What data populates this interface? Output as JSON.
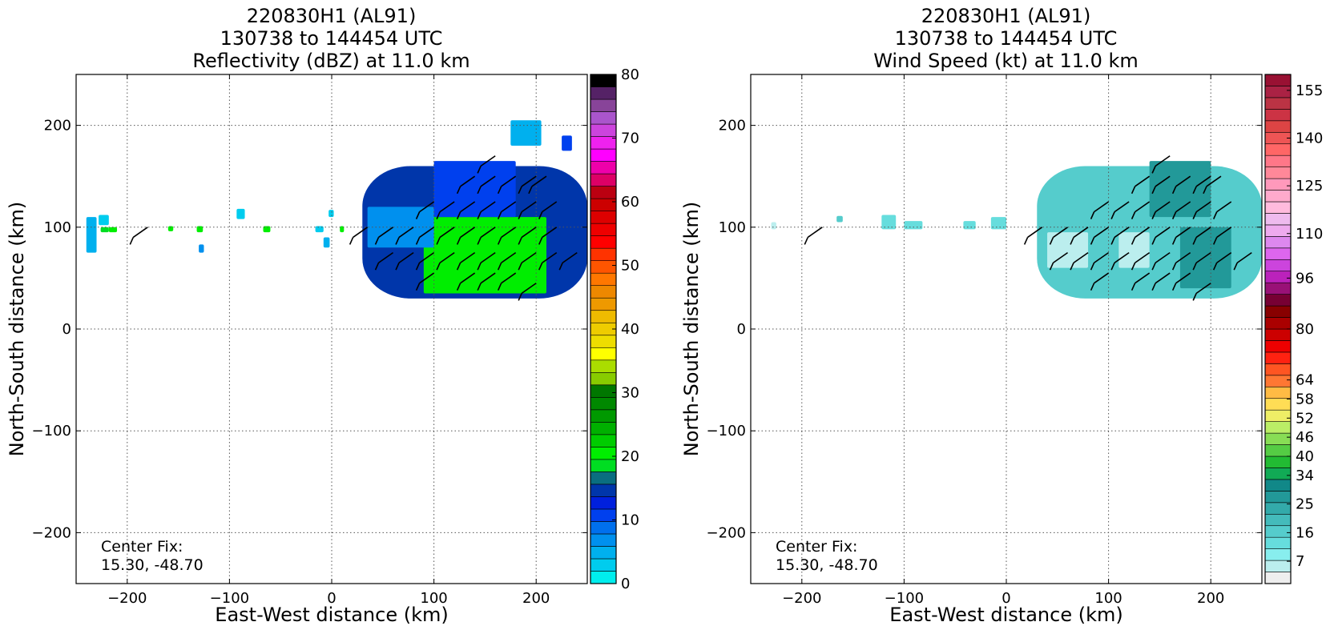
{
  "chart_data": [
    {
      "type": "heatmap",
      "title": [
        "220830H1 (AL91)",
        "130738 to 144454 UTC",
        "Reflectivity (dBZ) at 11.0 km"
      ],
      "xlabel": "East-West distance (km)",
      "ylabel": "North-South distance (km)",
      "xlim": [
        -250,
        250
      ],
      "ylim": [
        -250,
        250
      ],
      "xticks": [
        -200,
        -100,
        0,
        100,
        200
      ],
      "yticks": [
        -200,
        -100,
        0,
        100,
        200
      ],
      "xtick_labels": [
        "−200",
        "−100",
        "0",
        "100",
        "200"
      ],
      "ytick_labels": [
        "−200",
        "−100",
        "0",
        "100",
        "200"
      ],
      "grid": true,
      "annotation": [
        "Center Fix:",
        "15.30, -48.70"
      ],
      "colorbar": {
        "min": 0,
        "max": 80,
        "ticks": [
          0,
          10,
          20,
          30,
          40,
          50,
          60,
          70,
          80
        ],
        "tick_labels": [
          "0",
          "10",
          "20",
          "30",
          "40",
          "50",
          "60",
          "70",
          "80"
        ],
        "colors": [
          "#00eeee",
          "#00ccee",
          "#00b0ee",
          "#0090ee",
          "#0070ee",
          "#0040ee",
          "#0020dd",
          "#0036aa",
          "#0a6e80",
          "#00dd22",
          "#00ee00",
          "#00cc00",
          "#00b000",
          "#009900",
          "#008800",
          "#007700",
          "#88cc00",
          "#aadd00",
          "#ffff00",
          "#eedd00",
          "#eecc00",
          "#eebb00",
          "#ee9900",
          "#ee8800",
          "#ff7700",
          "#ff5500",
          "#ff3300",
          "#ff0000",
          "#ee0000",
          "#dd0000",
          "#cc0000",
          "#bb0011",
          "#dd0066",
          "#ee00aa",
          "#ff00ff",
          "#ee22ee",
          "#cc44dd",
          "#aa55cc",
          "#884499",
          "#552266",
          "#000000"
        ]
      },
      "precip_regions": [
        {
          "x": [
            30,
            250
          ],
          "y": [
            30,
            160
          ],
          "value": 14,
          "note": "main core envelope"
        },
        {
          "x": [
            90,
            210
          ],
          "y": [
            35,
            110
          ],
          "value": 21
        },
        {
          "x": [
            100,
            180
          ],
          "y": [
            110,
            165
          ],
          "value": 11
        },
        {
          "x": [
            35,
            100
          ],
          "y": [
            80,
            120
          ],
          "value": 6
        },
        {
          "x": [
            175,
            205
          ],
          "y": [
            180,
            205
          ],
          "value": 4
        },
        {
          "x": [
            225,
            235
          ],
          "y": [
            175,
            190
          ],
          "value": 11
        },
        {
          "x": [
            -240,
            -230
          ],
          "y": [
            75,
            110
          ],
          "value": 4
        },
        {
          "x": [
            -228,
            -218
          ],
          "y": [
            102,
            112
          ],
          "value": 3
        },
        {
          "x": [
            -226,
            -218
          ],
          "y": [
            95,
            100
          ],
          "value": 19
        },
        {
          "x": [
            -218,
            -210
          ],
          "y": [
            95,
            100
          ],
          "value": 20
        },
        {
          "x": [
            -160,
            -155
          ],
          "y": [
            96,
            101
          ],
          "value": 20
        },
        {
          "x": [
            -132,
            -126
          ],
          "y": [
            95,
            101
          ],
          "value": 20
        },
        {
          "x": [
            -130,
            -125
          ],
          "y": [
            75,
            83
          ],
          "value": 7
        },
        {
          "x": [
            -93,
            -85
          ],
          "y": [
            108,
            118
          ],
          "value": 3
        },
        {
          "x": [
            -67,
            -60
          ],
          "y": [
            95,
            101
          ],
          "value": 20
        },
        {
          "x": [
            -16,
            -8
          ],
          "y": [
            95,
            101
          ],
          "value": 3
        },
        {
          "x": [
            -8,
            -2
          ],
          "y": [
            80,
            90
          ],
          "value": 5
        },
        {
          "x": [
            -3,
            2
          ],
          "y": [
            110,
            117
          ],
          "value": 2
        },
        {
          "x": [
            8,
            12
          ],
          "y": [
            95,
            101
          ],
          "value": 20
        }
      ],
      "wind_barbs": [
        {
          "x": -180,
          "y": 100
        },
        {
          "x": 35,
          "y": 100
        },
        {
          "x": 60,
          "y": 100
        },
        {
          "x": 80,
          "y": 100
        },
        {
          "x": 100,
          "y": 100
        },
        {
          "x": 120,
          "y": 100
        },
        {
          "x": 140,
          "y": 100
        },
        {
          "x": 160,
          "y": 100
        },
        {
          "x": 180,
          "y": 100
        },
        {
          "x": 200,
          "y": 100
        },
        {
          "x": 220,
          "y": 100
        },
        {
          "x": 100,
          "y": 125
        },
        {
          "x": 120,
          "y": 125
        },
        {
          "x": 140,
          "y": 125
        },
        {
          "x": 160,
          "y": 125
        },
        {
          "x": 180,
          "y": 125
        },
        {
          "x": 200,
          "y": 125
        },
        {
          "x": 220,
          "y": 125
        },
        {
          "x": 140,
          "y": 150
        },
        {
          "x": 160,
          "y": 150
        },
        {
          "x": 180,
          "y": 150
        },
        {
          "x": 200,
          "y": 150
        },
        {
          "x": 160,
          "y": 170
        },
        {
          "x": 210,
          "y": 150
        },
        {
          "x": 60,
          "y": 75
        },
        {
          "x": 80,
          "y": 75
        },
        {
          "x": 100,
          "y": 75
        },
        {
          "x": 120,
          "y": 75
        },
        {
          "x": 140,
          "y": 75
        },
        {
          "x": 160,
          "y": 75
        },
        {
          "x": 180,
          "y": 75
        },
        {
          "x": 200,
          "y": 75
        },
        {
          "x": 220,
          "y": 75
        },
        {
          "x": 240,
          "y": 75
        },
        {
          "x": 100,
          "y": 55
        },
        {
          "x": 140,
          "y": 55
        },
        {
          "x": 160,
          "y": 55
        },
        {
          "x": 180,
          "y": 55
        },
        {
          "x": 200,
          "y": 45
        }
      ]
    },
    {
      "type": "heatmap",
      "title": [
        "220830H1 (AL91)",
        "130738 to 144454 UTC",
        "Wind Speed (kt) at 11.0 km"
      ],
      "xlabel": "East-West distance (km)",
      "ylabel": "North-South distance (km)",
      "xlim": [
        -250,
        250
      ],
      "ylim": [
        -250,
        250
      ],
      "xticks": [
        -200,
        -100,
        0,
        100,
        200
      ],
      "yticks": [
        -200,
        -100,
        0,
        100,
        200
      ],
      "xtick_labels": [
        "−200",
        "−100",
        "0",
        "100",
        "200"
      ],
      "ytick_labels": [
        "−200",
        "−100",
        "0",
        "100",
        "200"
      ],
      "grid": true,
      "annotation": [
        "Center Fix:",
        "15.30, -48.70"
      ],
      "colorbar": {
        "min": 0,
        "max": 160,
        "ticks": [
          7,
          16,
          25,
          34,
          40,
          46,
          52,
          58,
          64,
          80,
          96,
          110,
          125,
          140,
          155
        ],
        "tick_labels": [
          "7",
          "16",
          "25",
          "34",
          "40",
          "46",
          "52",
          "58",
          "64",
          "80",
          "96",
          "110",
          "125",
          "140",
          "155"
        ],
        "colors": [
          "#eeeeee",
          "#bbeeee",
          "#88eeee",
          "#66dddd",
          "#55cccc",
          "#44bbbb",
          "#33aaaa",
          "#229999",
          "#118888",
          "#11aa55",
          "#22bb33",
          "#55cc44",
          "#88dd55",
          "#bbee66",
          "#eeee66",
          "#ffdd55",
          "#ffbb44",
          "#ff7733",
          "#ff5522",
          "#ff2211",
          "#ee0000",
          "#cc0000",
          "#aa0000",
          "#880000",
          "#770033",
          "#991177",
          "#bb22bb",
          "#cc44dd",
          "#dd66ee",
          "#dd88ee",
          "#eeaaee",
          "#eebbee",
          "#ffbbdd",
          "#ffaacc",
          "#ff99bb",
          "#ff8899",
          "#ff7788",
          "#ff6666",
          "#ee5555",
          "#dd4444",
          "#cc3344",
          "#bb3344",
          "#aa2244",
          "#991133"
        ]
      },
      "wind_regions": [
        {
          "x": [
            30,
            250
          ],
          "y": [
            30,
            160
          ],
          "value": 18,
          "note": "main core envelope"
        },
        {
          "x": [
            40,
            80
          ],
          "y": [
            60,
            95
          ],
          "value": 5
        },
        {
          "x": [
            110,
            140
          ],
          "y": [
            60,
            95
          ],
          "value": 6
        },
        {
          "x": [
            140,
            200
          ],
          "y": [
            110,
            165
          ],
          "value": 28
        },
        {
          "x": [
            170,
            220
          ],
          "y": [
            40,
            100
          ],
          "value": 27
        },
        {
          "x": [
            -230,
            -225
          ],
          "y": [
            98,
            105
          ],
          "value": 6
        },
        {
          "x": [
            -166,
            -160
          ],
          "y": [
            105,
            111
          ],
          "value": 16
        },
        {
          "x": [
            -122,
            -108
          ],
          "y": [
            98,
            112
          ],
          "value": 14
        },
        {
          "x": [
            -100,
            -82
          ],
          "y": [
            98,
            106
          ],
          "value": 12
        },
        {
          "x": [
            -42,
            -30
          ],
          "y": [
            98,
            106
          ],
          "value": 12
        },
        {
          "x": [
            -15,
            0
          ],
          "y": [
            98,
            110
          ],
          "value": 12
        }
      ],
      "wind_barbs": [
        {
          "x": -180,
          "y": 100
        },
        {
          "x": 35,
          "y": 100
        },
        {
          "x": 60,
          "y": 100
        },
        {
          "x": 80,
          "y": 100
        },
        {
          "x": 100,
          "y": 100
        },
        {
          "x": 120,
          "y": 100
        },
        {
          "x": 140,
          "y": 100
        },
        {
          "x": 160,
          "y": 100
        },
        {
          "x": 180,
          "y": 100
        },
        {
          "x": 200,
          "y": 100
        },
        {
          "x": 220,
          "y": 100
        },
        {
          "x": 100,
          "y": 125
        },
        {
          "x": 120,
          "y": 125
        },
        {
          "x": 140,
          "y": 125
        },
        {
          "x": 160,
          "y": 125
        },
        {
          "x": 180,
          "y": 125
        },
        {
          "x": 200,
          "y": 125
        },
        {
          "x": 220,
          "y": 125
        },
        {
          "x": 140,
          "y": 150
        },
        {
          "x": 160,
          "y": 150
        },
        {
          "x": 180,
          "y": 150
        },
        {
          "x": 200,
          "y": 150
        },
        {
          "x": 160,
          "y": 170
        },
        {
          "x": 210,
          "y": 150
        },
        {
          "x": 60,
          "y": 75
        },
        {
          "x": 80,
          "y": 75
        },
        {
          "x": 100,
          "y": 75
        },
        {
          "x": 120,
          "y": 75
        },
        {
          "x": 140,
          "y": 75
        },
        {
          "x": 160,
          "y": 75
        },
        {
          "x": 180,
          "y": 75
        },
        {
          "x": 200,
          "y": 75
        },
        {
          "x": 220,
          "y": 75
        },
        {
          "x": 240,
          "y": 75
        },
        {
          "x": 100,
          "y": 55
        },
        {
          "x": 140,
          "y": 55
        },
        {
          "x": 160,
          "y": 55
        },
        {
          "x": 180,
          "y": 55
        },
        {
          "x": 200,
          "y": 45
        }
      ]
    }
  ]
}
